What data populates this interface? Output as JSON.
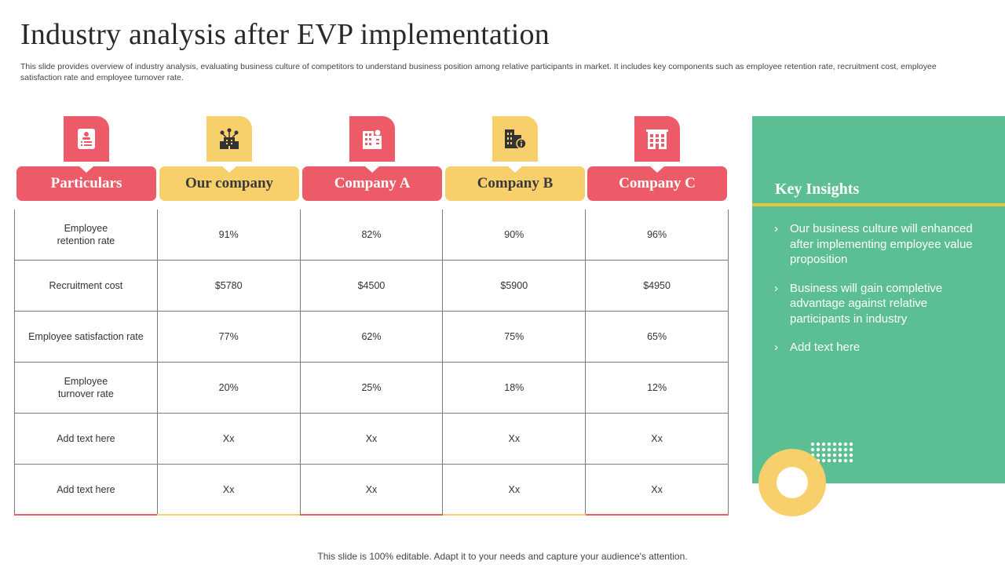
{
  "title": "Industry analysis after EVP implementation",
  "subtitle": "This slide provides overview of industry analysis, evaluating business culture of competitors to understand business position among relative participants in market. It includes key components such as employee retention rate, recruitment cost, employee satisfaction rate and employee turnover rate.",
  "colors": {
    "red": "#ec5b67",
    "yellow": "#f7cf6b",
    "green": "#5bbf93",
    "gold": "#e8c440"
  },
  "columns": [
    {
      "label": "Particulars",
      "icon": "document-user-icon",
      "color": "red"
    },
    {
      "label": "Our company",
      "icon": "building-network-icon",
      "color": "yellow"
    },
    {
      "label": "Company A",
      "icon": "office-building-icon",
      "color": "red"
    },
    {
      "label": "Company B",
      "icon": "company-info-icon",
      "color": "yellow"
    },
    {
      "label": "Company C",
      "icon": "office-tower-icon",
      "color": "red"
    }
  ],
  "rows": [
    {
      "particular": "Employee\nretention rate",
      "values": [
        "91%",
        "82%",
        "90%",
        "96%"
      ]
    },
    {
      "particular": "Recruitment cost",
      "values": [
        "$5780",
        "$4500",
        "$5900",
        "$4950"
      ]
    },
    {
      "particular": "Employee satisfaction rate",
      "values": [
        "77%",
        "62%",
        "75%",
        "65%"
      ]
    },
    {
      "particular": "Employee\nturnover rate",
      "values": [
        "20%",
        "25%",
        "18%",
        "12%"
      ]
    },
    {
      "particular": "Add text here",
      "values": [
        "Xx",
        "Xx",
        "Xx",
        "Xx"
      ]
    },
    {
      "particular": "Add text here",
      "values": [
        "Xx",
        "Xx",
        "Xx",
        "Xx"
      ]
    }
  ],
  "insights": {
    "heading": "Key Insights",
    "bullet_glyph": "›",
    "items": [
      "Our business culture will enhanced after implementing employee value proposition",
      "Business will gain completive advantage against relative participants in industry",
      "Add text here"
    ]
  },
  "footer": "This slide is 100% editable. Adapt it to your needs and capture your audience's attention."
}
